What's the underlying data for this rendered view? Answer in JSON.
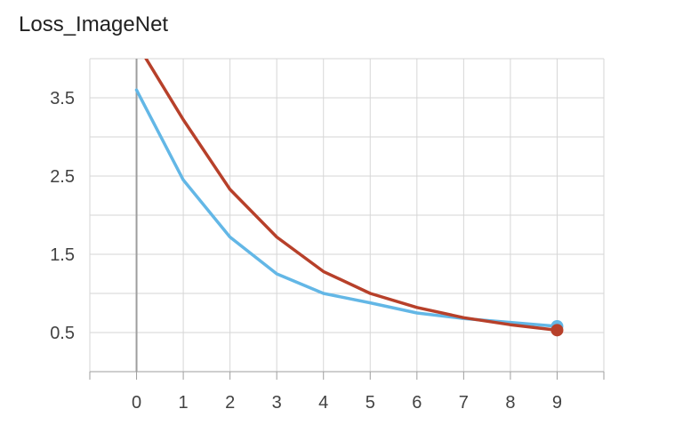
{
  "title": "Loss_ImageNet",
  "chart_data": {
    "type": "line",
    "title": "Loss_ImageNet",
    "xlabel": "",
    "ylabel": "",
    "x": [
      0,
      1,
      2,
      3,
      4,
      5,
      6,
      7,
      8,
      9
    ],
    "xlim": [
      -1,
      10
    ],
    "ylim": [
      0.0,
      4.0
    ],
    "x_ticks": [
      "0",
      "1",
      "2",
      "3",
      "4",
      "5",
      "6",
      "7",
      "8",
      "9"
    ],
    "y_ticks": [
      "0.5",
      "1.5",
      "2.5",
      "3.5"
    ],
    "grid": true,
    "series": [
      {
        "color": "#63b7e6",
        "values": [
          3.6,
          2.45,
          1.72,
          1.25,
          1.0,
          0.88,
          0.75,
          0.68,
          0.63,
          0.58
        ]
      },
      {
        "color": "#b7402a",
        "values": [
          4.2,
          3.22,
          2.33,
          1.72,
          1.28,
          1.0,
          0.82,
          0.69,
          0.6,
          0.53
        ]
      }
    ]
  }
}
